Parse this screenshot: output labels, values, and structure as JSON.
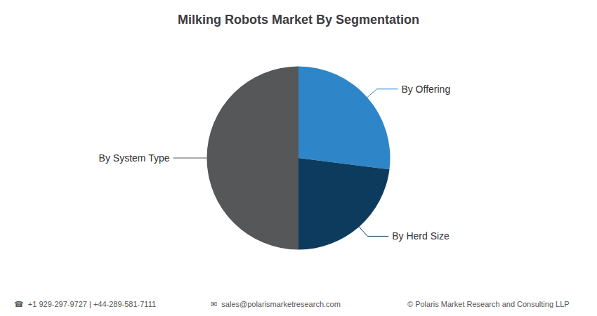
{
  "chart_data": {
    "type": "pie",
    "title": "Milking Robots Market By Segmentation",
    "categories": [
      "By System Type",
      "By Offering",
      "By Herd Size"
    ],
    "values": [
      50,
      27,
      23
    ],
    "colors": [
      "#555759",
      "#2E86C8",
      "#0D3B5E"
    ],
    "annotations": [
      "☎  +1 929-297-9727 | +44-289-581-7111",
      "✉  sales@polarismarketresearch.com",
      "© Polaris Market Research and Consulting LLP"
    ]
  }
}
